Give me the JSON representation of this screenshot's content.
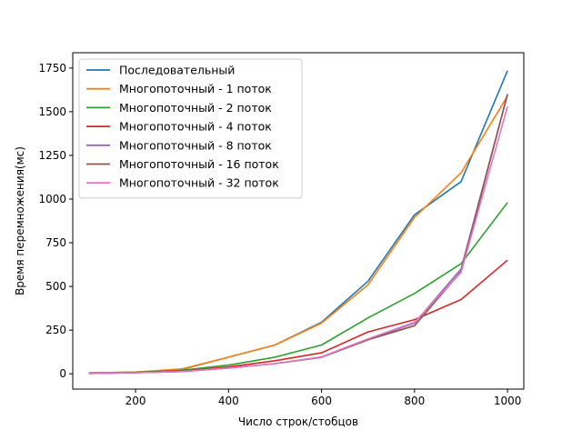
{
  "chart_data": {
    "type": "line",
    "xlabel": "Число строк/стобцов",
    "ylabel": "Время перемножения(мс)",
    "xlim": [
      65,
      1035
    ],
    "ylim": [
      -87.5,
      1837.5
    ],
    "xticks": [
      200,
      400,
      600,
      800,
      1000
    ],
    "yticks": [
      0,
      250,
      500,
      750,
      1000,
      1250,
      1500,
      1750
    ],
    "grid": false,
    "legend_position": "top-left",
    "x": [
      100,
      200,
      300,
      400,
      500,
      600,
      700,
      800,
      900,
      1000
    ],
    "series": [
      {
        "name": "Последовательный",
        "color": "#1f77b4",
        "values": [
          5,
          10,
          25,
          95,
          165,
          295,
          530,
          910,
          1100,
          1735
        ]
      },
      {
        "name": "Многопоточный - 1 поток",
        "color": "#ff7f0e",
        "values": [
          5,
          10,
          28,
          95,
          165,
          290,
          510,
          895,
          1150,
          1590
        ]
      },
      {
        "name": "Многопоточный - 2 поток",
        "color": "#2ca02c",
        "values": [
          3,
          8,
          20,
          50,
          95,
          165,
          320,
          460,
          630,
          980
        ]
      },
      {
        "name": "Многопоточный - 4 поток",
        "color": "#d62728",
        "values": [
          2,
          7,
          15,
          40,
          75,
          120,
          240,
          310,
          425,
          650
        ]
      },
      {
        "name": "Многопоточный - 8 поток",
        "color": "#9467bd",
        "values": [
          2,
          6,
          13,
          33,
          58,
          95,
          195,
          290,
          600,
          1600
        ]
      },
      {
        "name": "Многопоточный - 16 поток",
        "color": "#8c564b",
        "values": [
          2,
          6,
          13,
          33,
          58,
          95,
          195,
          275,
          585,
          1600
        ]
      },
      {
        "name": "Многопоточный - 32 поток",
        "color": "#e377c2",
        "values": [
          2,
          6,
          13,
          33,
          58,
          97,
          200,
          295,
          580,
          1530
        ]
      }
    ]
  }
}
